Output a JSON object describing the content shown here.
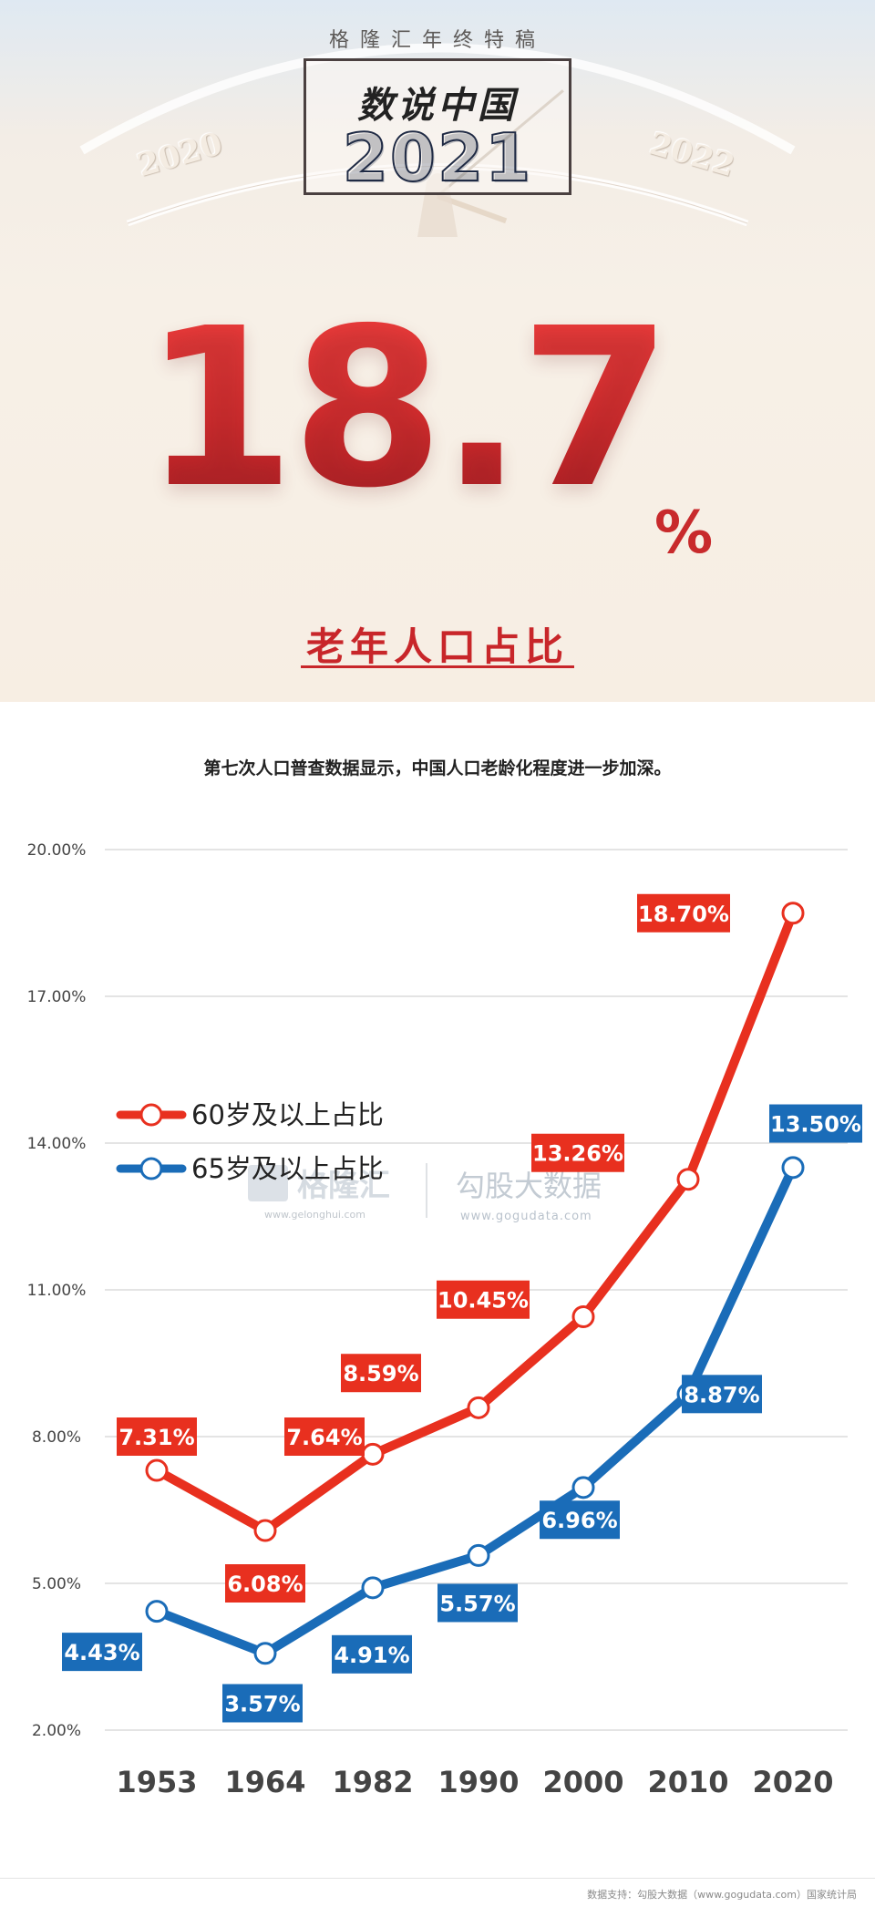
{
  "banner": {
    "series_name": "格隆汇年终特稿",
    "title_cn": "数说中国",
    "title_year": "2021",
    "prev_year": "2020",
    "next_year": "2022",
    "headline_value": "18.7",
    "headline_unit": "%",
    "headline_label": "老年人口占比"
  },
  "caption": "第七次人口普查数据显示，中国人口老龄化程度进一步加深。",
  "watermark": {
    "logo_text": "格隆汇",
    "logo_url": "www.gelonghui.com",
    "brand": "勾股大数据",
    "brand_url": "www.gogudata.com"
  },
  "footer": "数据支持：勾股大数据（www.gogudata.com）国家统计局",
  "colors": {
    "red": "#e8301f",
    "blue": "#1a6cb8",
    "headline_red": "#c8262a"
  },
  "chart_data": {
    "type": "line",
    "categories": [
      "1953",
      "1964",
      "1982",
      "1990",
      "2000",
      "2010",
      "2020"
    ],
    "y_ticks": [
      "2.00%",
      "5.00%",
      "8.00%",
      "11.00%",
      "14.00%",
      "17.00%",
      "20.00%"
    ],
    "ylim": [
      2,
      20
    ],
    "grid": true,
    "legend_position": "left-middle",
    "series": [
      {
        "name": "60岁及以上占比",
        "color": "#e8301f",
        "values": [
          7.31,
          6.08,
          7.64,
          8.59,
          10.45,
          13.26,
          18.7
        ],
        "labels": [
          "7.31%",
          "6.08%",
          "7.64%",
          "8.59%",
          "10.45%",
          "13.26%",
          "18.70%"
        ]
      },
      {
        "name": "65岁及以上占比",
        "color": "#1a6cb8",
        "values": [
          4.43,
          3.57,
          4.91,
          5.57,
          6.96,
          8.87,
          13.5
        ],
        "labels": [
          "4.43%",
          "3.57%",
          "4.91%",
          "5.57%",
          "6.96%",
          "8.87%",
          "13.50%"
        ]
      }
    ]
  }
}
